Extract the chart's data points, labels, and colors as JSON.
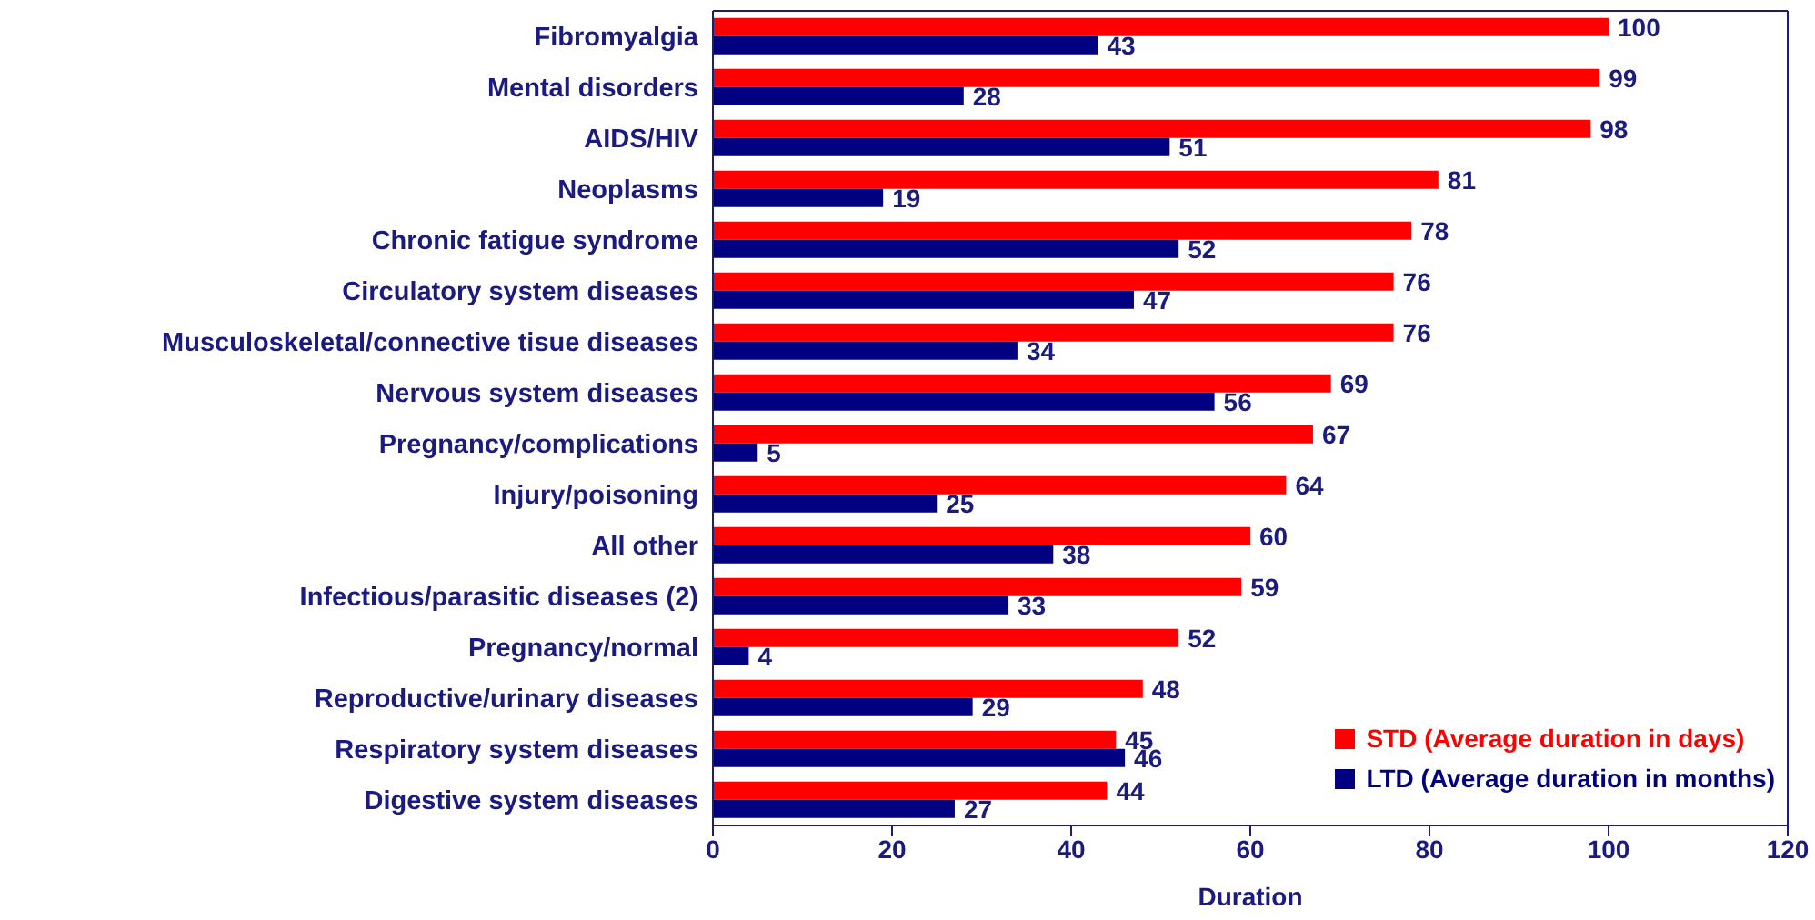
{
  "chart_data": {
    "type": "bar",
    "orientation": "horizontal",
    "xlabel": "Duration",
    "categories": [
      "Fibromyalgia",
      "Mental disorders",
      "AIDS/HIV",
      "Neoplasms",
      "Chronic fatigue syndrome",
      "Circulatory system diseases",
      "Musculoskeletal/connective tisue diseases",
      "Nervous system diseases",
      "Pregnancy/complications",
      "Injury/poisoning",
      "All other",
      "Infectious/parasitic diseases (2)",
      "Pregnancy/normal",
      "Reproductive/urinary diseases",
      "Respiratory system diseases",
      "Digestive system diseases"
    ],
    "series": [
      {
        "name": "STD (Average duration in days)",
        "color": "#ff0000",
        "values": [
          100,
          99,
          98,
          81,
          78,
          76,
          76,
          69,
          67,
          64,
          60,
          59,
          52,
          48,
          45,
          44
        ]
      },
      {
        "name": "LTD (Average duration in months)",
        "color": "#000080",
        "values": [
          43,
          28,
          51,
          19,
          52,
          47,
          34,
          56,
          5,
          25,
          38,
          33,
          4,
          29,
          46,
          27
        ]
      }
    ],
    "xlim": [
      0,
      120
    ],
    "xticks": [
      0,
      20,
      40,
      60,
      80,
      100,
      120
    ],
    "data_labels": true,
    "legend": "bottom right",
    "grid": false
  }
}
